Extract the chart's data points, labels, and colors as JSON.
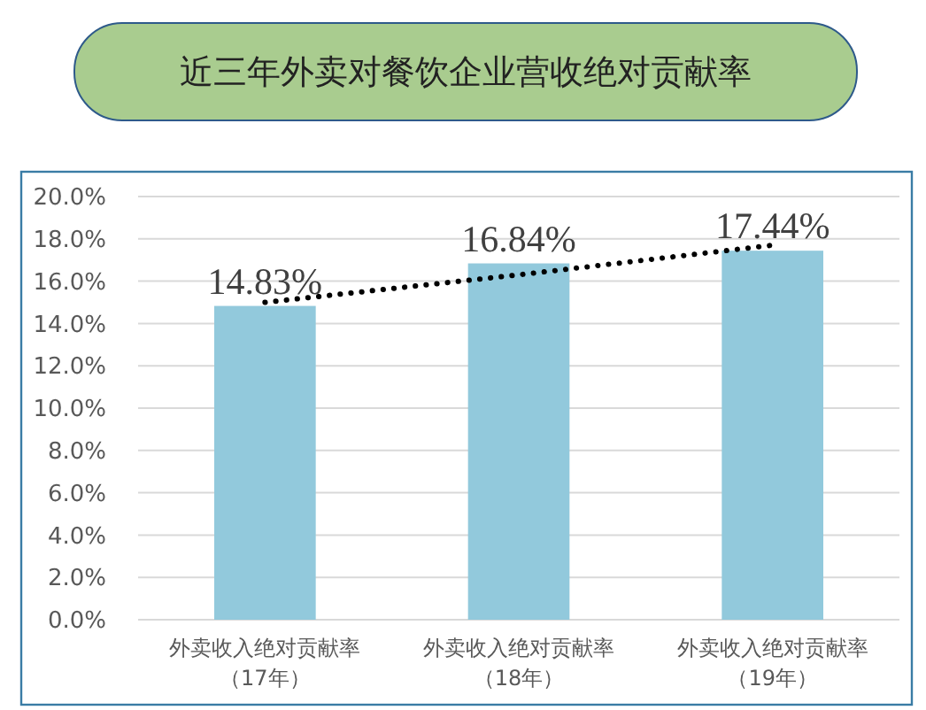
{
  "chart_data": {
    "type": "bar",
    "title": "近三年外卖对餐饮企业营收绝对贡献率",
    "categories": [
      "外卖收入绝对贡献率（17年）",
      "外卖收入绝对贡献率（18年）",
      "外卖收入绝对贡献率（19年）"
    ],
    "series": [
      {
        "color": "#92c9dc",
        "values": [
          14.83,
          16.84,
          17.44
        ],
        "value_labels": [
          "14.83%",
          "16.84%",
          "17.44%"
        ]
      },
      {
        "type": "line",
        "color": "#000000",
        "line_style": "dotted",
        "values": [
          15.0,
          16.3,
          17.7
        ]
      }
    ],
    "ylim": [
      0,
      20
    ],
    "yticks": [
      {
        "value": 0,
        "label": "0.0%"
      },
      {
        "value": 2,
        "label": "2.0%"
      },
      {
        "value": 4,
        "label": "4.0%"
      },
      {
        "value": 6,
        "label": "6.0%"
      },
      {
        "value": 8,
        "label": "8.0%"
      },
      {
        "value": 10,
        "label": "10.0%"
      },
      {
        "value": 12,
        "label": "12.0%"
      },
      {
        "value": 14,
        "label": "14.0%"
      },
      {
        "value": 16,
        "label": "16.0%"
      },
      {
        "value": 18,
        "label": "18.0%"
      },
      {
        "value": 20,
        "label": "20.0%"
      }
    ],
    "grid": "y"
  }
}
